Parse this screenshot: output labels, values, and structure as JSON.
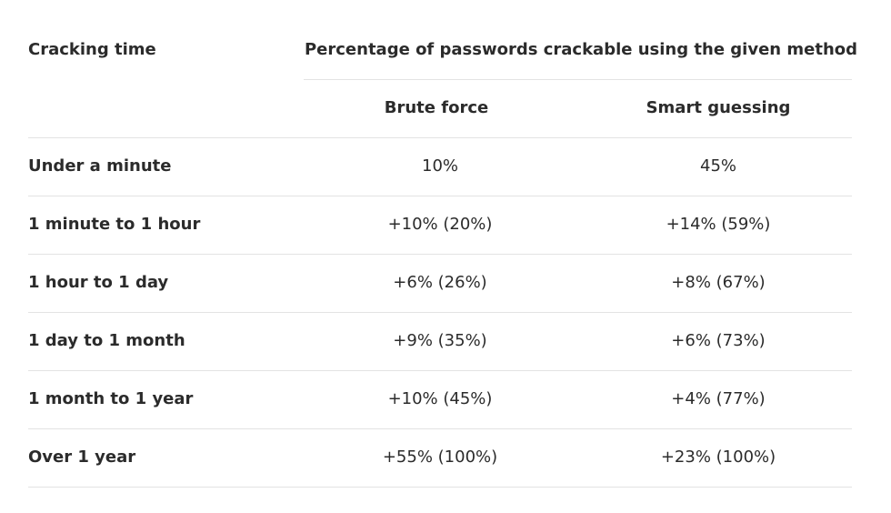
{
  "table": {
    "header": {
      "first_col": "Cracking time",
      "group_title": "Percentage of passwords crackable using the given method",
      "col_brute": "Brute force",
      "col_smart": "Smart guessing"
    },
    "rows": [
      {
        "time": "Under a minute",
        "brute": "10%",
        "smart": "45%"
      },
      {
        "time": "1 minute to 1 hour",
        "brute": "+10% (20%)",
        "smart": "+14% (59%)"
      },
      {
        "time": "1 hour to 1 day",
        "brute": "+6% (26%)",
        "smart": "+8% (67%)"
      },
      {
        "time": "1 day to 1 month",
        "brute": "+9% (35%)",
        "smart": "+6% (73%)"
      },
      {
        "time": "1 month to 1 year",
        "brute": "+10% (45%)",
        "smart": "+4% (77%)"
      },
      {
        "time": "Over 1 year",
        "brute": "+55% (100%)",
        "smart": "+23% (100%)"
      }
    ]
  }
}
